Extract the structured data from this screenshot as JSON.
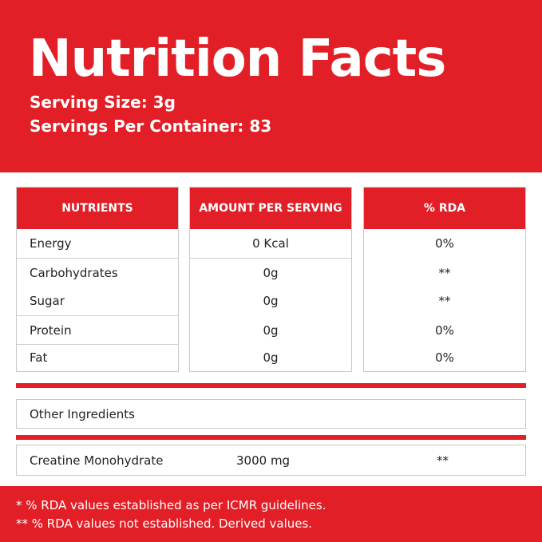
{
  "header": {
    "title": "Nutrition Facts",
    "serving_size": "Serving Size: 3g",
    "servings_per_container": "Servings Per Container: 83"
  },
  "table": {
    "headers": [
      "NUTRIENTS",
      "AMOUNT PER SERVING",
      "% RDA"
    ],
    "rows": [
      {
        "nutrient": "Energy",
        "amount": "0 Kcal",
        "rda": "0%"
      },
      {
        "nutrient": "Carbohydrates",
        "amount": "0g",
        "rda": "**"
      },
      {
        "nutrient": "Sugar",
        "amount": "0g",
        "rda": "**"
      },
      {
        "nutrient": "Protein",
        "amount": "0g",
        "rda": "0%"
      },
      {
        "nutrient": "Fat",
        "amount": "0g",
        "rda": "0%"
      }
    ]
  },
  "other_ingredients": {
    "label": "Other Ingredients",
    "name": "Creatine Monohydrate",
    "amount": "3000 mg",
    "rda": "**"
  },
  "footer": {
    "note1": "* % RDA values established as per ICMR guidelines.",
    "note2": "** % RDA values not established. Derived values."
  },
  "colors": {
    "brand_red": "#e21e26"
  }
}
